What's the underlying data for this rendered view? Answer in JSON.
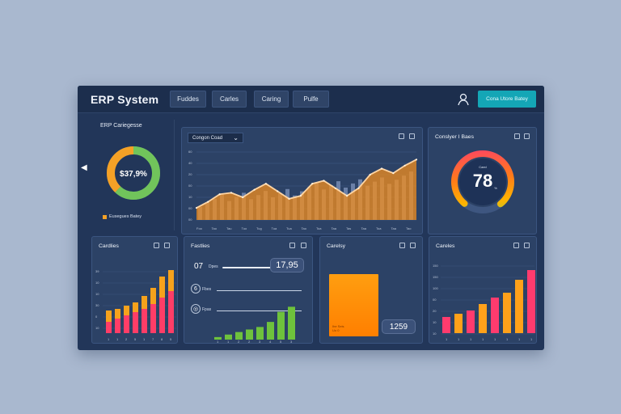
{
  "app": {
    "title": "ERP System",
    "accent": "#14a6b6"
  },
  "header": {
    "tabs": [
      {
        "label": "Fuddes"
      },
      {
        "label": "Carles"
      },
      {
        "label": "Caring"
      },
      {
        "label": "Pulfe"
      }
    ],
    "user_icon": "user-icon",
    "cta_label": "Cona Utore Batey"
  },
  "sidebar": {
    "collapse_icon": "chevron-left-icon"
  },
  "categories_panel": {
    "title": "ERP Cariegesse",
    "donut_value": "$37,9%",
    "legend_label": "Eusegues Batey",
    "donut_segments": {
      "green": 0.62,
      "orange": 0.38
    }
  },
  "line_card": {
    "dropdown_label": "Congon Coad",
    "x_labels": [
      "Foo",
      "Tao",
      "Tau",
      "Tuo",
      "Tug",
      "Tua",
      "Tua",
      "Tao",
      "Toa",
      "Taa",
      "Tas",
      "Taa",
      "Toa",
      "Taa",
      "Tao"
    ],
    "y_labels": [
      "60",
      "40",
      "20",
      "00",
      "10",
      "00",
      "00"
    ],
    "chart_data": {
      "type": "area",
      "series": [
        {
          "name": "",
          "values": [
            8,
            12,
            17,
            18,
            15,
            20,
            24,
            19,
            14,
            16,
            24,
            26,
            21,
            16,
            21,
            30,
            34,
            31,
            36,
            40
          ]
        }
      ],
      "ylim": [
        0,
        45
      ],
      "accent": "#f58a16"
    }
  },
  "gauge_card": {
    "title": "Conslyer I Baes",
    "value": "78",
    "small_top": "Caed",
    "small_side": "%",
    "chart_data": {
      "type": "gauge",
      "value": 78,
      "max": 100,
      "gradient": [
        "#ff3b70",
        "#ff7a1a",
        "#ffb400",
        "#8bd04a"
      ]
    }
  },
  "bottom_cards": [
    {
      "title": "Cardlies",
      "x_labels": [
        "1",
        "1",
        "2",
        "5",
        "1",
        "7",
        "8",
        "5"
      ],
      "y_labels": [
        "39",
        "10",
        "10",
        "30",
        "0",
        "10"
      ],
      "chart_data": {
        "type": "bar",
        "series": [
          {
            "name": "",
            "values": [
              14,
              15,
              17,
              19,
              23,
              28,
              35,
              39
            ]
          },
          {
            "name": "",
            "values": [
              7,
              9,
              11,
              13,
              15,
              18,
              22,
              26
            ]
          }
        ],
        "ylim": [
          0,
          45
        ]
      }
    },
    {
      "title": "Fastlies",
      "top_value_left": "07",
      "top_label": "Dpes",
      "pill_value": "17,95",
      "row1_value": "6",
      "row1_label": "Fbes",
      "row2_label": "Fpas",
      "x_labels": [
        "1",
        "1",
        "2",
        "2",
        "3",
        "4",
        "5",
        "3"
      ],
      "chart_data": {
        "type": "bar",
        "values": [
          1,
          2,
          3,
          4,
          5,
          7,
          11,
          13
        ],
        "ylim": [
          0,
          16
        ]
      }
    },
    {
      "title": "Carelsy",
      "pill_value": "1259",
      "panel_text": [
        "Ihe Seis",
        "Uo 0"
      ],
      "chart_data": {
        "type": "block",
        "value": 1259
      }
    },
    {
      "title": "Careles",
      "x_labels": [
        "1",
        "1",
        "1",
        "1",
        "1",
        "1",
        "1",
        "1"
      ],
      "y_labels": [
        "150",
        "150",
        "100",
        "00",
        "20",
        "10",
        "10"
      ],
      "chart_data": {
        "type": "bar",
        "values": [
          10,
          12,
          14,
          18,
          22,
          25,
          33,
          39
        ],
        "colors": [
          "#ff3b6e",
          "#ffa11a",
          "#ff3b6e",
          "#ffa11a",
          "#ff3b6e",
          "#ffa11a",
          "#ffa11a",
          "#ff3b6e"
        ],
        "ylim": [
          0,
          45
        ]
      }
    }
  ]
}
